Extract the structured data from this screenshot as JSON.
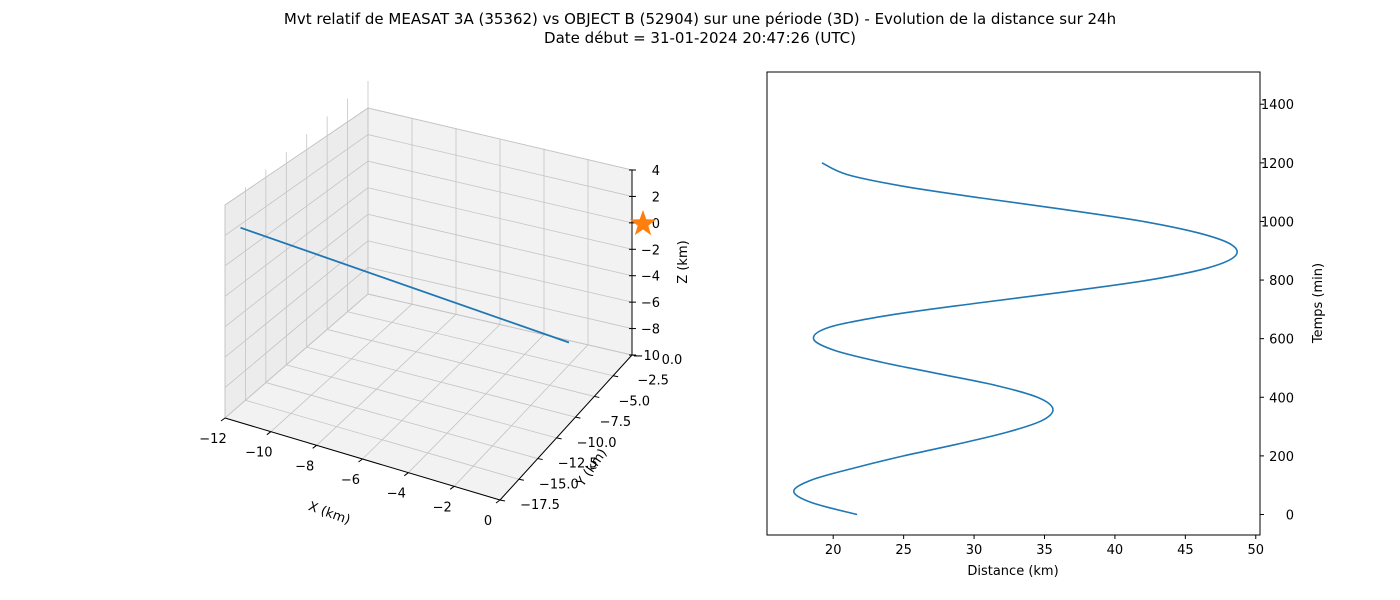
{
  "figure": {
    "title_line1": "Mvt relatif de MEASAT 3A (35362) vs OBJECT B (52904) sur une période (3D) - Evolution de la distance sur 24h",
    "title_line2": "Date début = 31-01-2024 20:47:26 (UTC)"
  },
  "chart_data": [
    {
      "type": "line3d",
      "xlabel": "X (km)",
      "ylabel": "Y (km)",
      "zlabel": "Z (km)",
      "x_ticks": [
        "−12",
        "−10",
        "−8",
        "−6",
        "−4",
        "−2",
        "0"
      ],
      "y_ticks": [
        "0.0",
        "−2.5",
        "−5.0",
        "−7.5",
        "−10.0",
        "−12.5",
        "−15.0",
        "−17.5"
      ],
      "z_ticks": [
        "4",
        "2",
        "0",
        "−2",
        "−4",
        "−6",
        "−8",
        "−10"
      ],
      "xlim": [
        -12,
        0
      ],
      "ylim": [
        -17.5,
        0
      ],
      "zlim": [
        -10,
        4
      ],
      "grid": true,
      "series": [
        {
          "marker": "line",
          "color": "#1f77b4",
          "points": [
            [
              -11.5,
              -17,
              2.5
            ],
            [
              -2.8,
              -1.2,
              -8.5
            ]
          ]
        },
        {
          "marker": "star",
          "color": "#ff7f0e",
          "points": [
            [
              0,
              0,
              0
            ]
          ]
        }
      ]
    },
    {
      "type": "line",
      "xlabel": "Distance (km)",
      "ylabel": "Temps (min)",
      "x_ticks": [
        20,
        25,
        30,
        35,
        40,
        45,
        50
      ],
      "y_ticks": [
        0,
        200,
        400,
        600,
        800,
        1000,
        1200,
        1400
      ],
      "xlim": [
        15.3,
        50.3
      ],
      "ylim": [
        -70,
        1510
      ],
      "y_axis_side": "right",
      "grid": false,
      "color": "#1f77b4",
      "series": [
        {
          "x": [
            21.7,
            18.5,
            17.2,
            18.6,
            21.6,
            25.0,
            28.8,
            32.3,
            34.8,
            35.6,
            34.5,
            31.6,
            27.5,
            23.4,
            20.1,
            18.6,
            19.8,
            24.0,
            30.0,
            36.5,
            42.4,
            46.5,
            48.5,
            48.3,
            46.0,
            42.0,
            36.5,
            30.5,
            25.0,
            21.0,
            19.2
          ],
          "y": [
            0,
            40,
            80,
            120,
            160,
            200,
            240,
            280,
            320,
            360,
            400,
            440,
            480,
            520,
            560,
            600,
            640,
            680,
            720,
            760,
            800,
            840,
            880,
            920,
            960,
            1000,
            1040,
            1080,
            1120,
            1160,
            1200
          ]
        }
      ]
    }
  ]
}
